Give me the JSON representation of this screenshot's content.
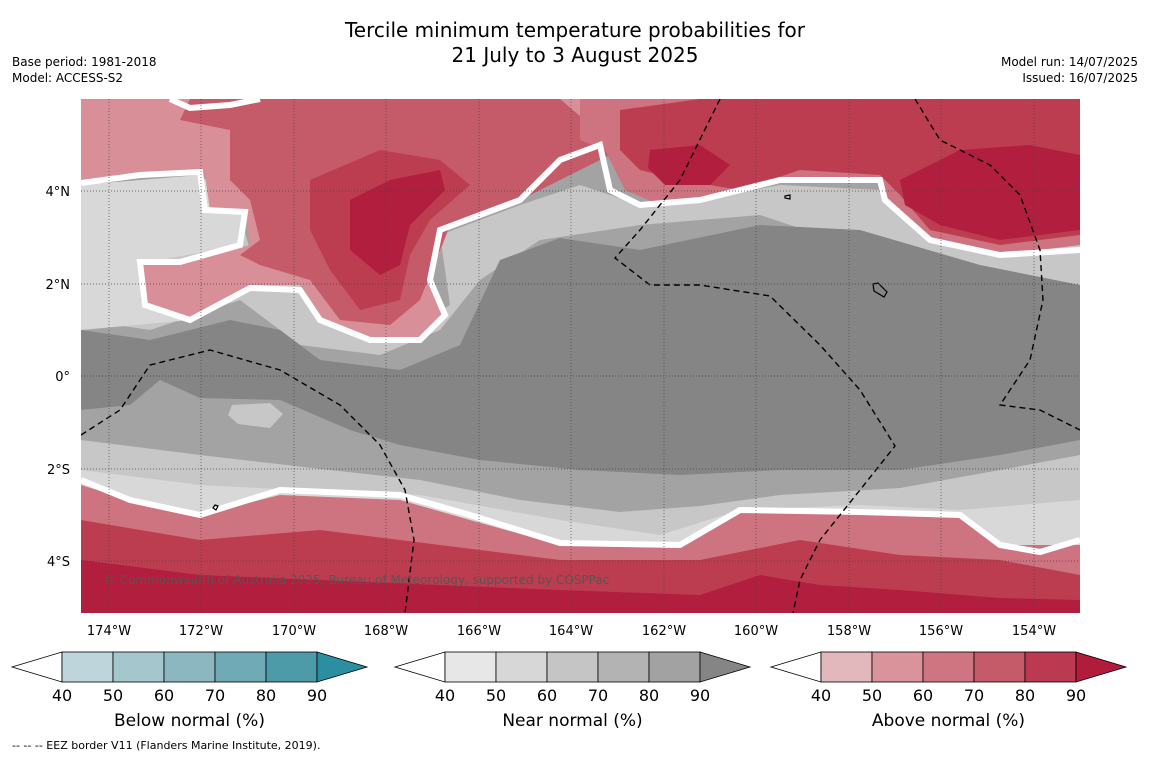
{
  "title": {
    "line1": "Tercile minimum temperature probabilities for",
    "line2": "21 July to 3 August 2025"
  },
  "meta_left": {
    "base_period": "Base period: 1981-2018",
    "model": "Model: ACCESS-S2"
  },
  "meta_right": {
    "model_run": "Model run: 14/07/2025",
    "issued": "Issued: 16/07/2025"
  },
  "map": {
    "lat_labels": [
      "4°N",
      "2°N",
      "0°",
      "2°S",
      "4°S"
    ],
    "lon_labels": [
      "174°W",
      "172°W",
      "170°W",
      "168°W",
      "166°W",
      "164°W",
      "162°W",
      "160°W",
      "158°W",
      "156°W",
      "154°W"
    ],
    "copyright": "© Commonwealth of Australia 2025, Bureau of Meteorology, supported by COSPPac",
    "colors": {
      "near_90": "#858585",
      "near_80": "#a3a3a3",
      "near_70": "#b7b7b7",
      "near_60": "#c7c7c7",
      "near_50": "#d8d8d8",
      "above_50": "#d98f98",
      "above_60": "#ce7380",
      "above_70": "#c55a69",
      "above_80": "#bd3d50",
      "above_90": "#b21e3d"
    }
  },
  "colorbars": [
    {
      "title": "Below normal (%)",
      "ticks": [
        "40",
        "50",
        "60",
        "70",
        "80",
        "90"
      ],
      "colors": [
        "#bfd5dc",
        "#a6c6cd",
        "#8cb7c1",
        "#70aab6",
        "#4d9aa9",
        "#2c8fa1"
      ]
    },
    {
      "title": "Near normal (%)",
      "ticks": [
        "40",
        "50",
        "60",
        "70",
        "80",
        "90"
      ],
      "colors": [
        "#e7e7e7",
        "#d7d7d7",
        "#c5c5c5",
        "#b3b3b3",
        "#a2a2a2",
        "#858585"
      ]
    },
    {
      "title": "Above normal (%)",
      "ticks": [
        "40",
        "50",
        "60",
        "70",
        "80",
        "90"
      ],
      "colors": [
        "#e2b8bd",
        "#d8939b",
        "#ce7581",
        "#c55a69",
        "#bb3a52",
        "#b11c3c"
      ]
    }
  ],
  "footer": "--  --  -- EEZ border V11 (Flanders Marine Institute, 2019)."
}
